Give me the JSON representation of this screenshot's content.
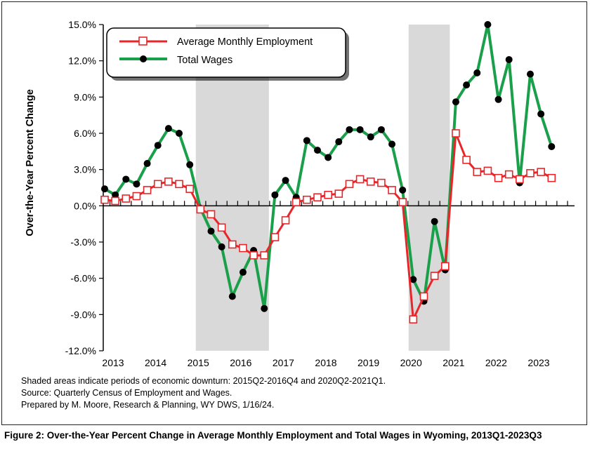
{
  "chart_data": {
    "type": "line",
    "ylabel": "Over-the-Year Percent Change",
    "ylim": [
      -12,
      15
    ],
    "y_ticks": [
      "15.0%",
      "12.0%",
      "9.0%",
      "6.0%",
      "3.0%",
      "0.0%",
      "-3.0%",
      "-6.0%",
      "-9.0%",
      "-12.0%"
    ],
    "y_tick_values": [
      15,
      12,
      9,
      6,
      3,
      0,
      -3,
      -6,
      -9,
      -12
    ],
    "x_tick_labels": [
      "2013",
      "2014",
      "2015",
      "2016",
      "2017",
      "2018",
      "2019",
      "2020",
      "2021",
      "2022",
      "2023"
    ],
    "x_start": "2013Q1",
    "shaded_periods": [
      [
        "2015Q2",
        "2016Q4"
      ],
      [
        "2020Q2",
        "2021Q1"
      ]
    ],
    "legend_position": "top-left",
    "grid": false,
    "series": [
      {
        "name": "Average Monthly Employment",
        "color": "#e8262a",
        "marker": "open-square",
        "values": [
          0.5,
          0.4,
          0.6,
          0.8,
          1.3,
          1.8,
          2.0,
          1.8,
          1.4,
          -0.3,
          -0.7,
          -1.8,
          -3.2,
          -3.5,
          -4.1,
          -4.1,
          -2.6,
          -1.2,
          0.3,
          0.5,
          0.7,
          0.9,
          1.0,
          1.8,
          2.2,
          2.0,
          1.9,
          1.3,
          0.3,
          -9.4,
          -7.5,
          -5.8,
          -5.0,
          6.0,
          3.8,
          2.8,
          2.9,
          2.3,
          2.6,
          2.2,
          2.7,
          2.8,
          2.3
        ]
      },
      {
        "name": "Total Wages",
        "color": "#1aa04a",
        "marker": "filled-circle",
        "values": [
          1.4,
          0.9,
          2.2,
          1.8,
          3.5,
          5.0,
          6.4,
          6.0,
          3.4,
          -0.2,
          -2.1,
          -3.4,
          -7.5,
          -5.5,
          -3.7,
          -8.5,
          0.9,
          2.1,
          0.7,
          5.4,
          4.6,
          4.0,
          5.3,
          6.3,
          6.3,
          5.7,
          6.3,
          5.1,
          1.3,
          -6.1,
          -7.9,
          -1.3,
          -5.3,
          8.6,
          10.0,
          11.0,
          15.0,
          8.8,
          12.1,
          1.9,
          10.9,
          7.6,
          4.9
        ]
      }
    ]
  },
  "notes": {
    "line1": "Shaded areas indicate periods of economic downturn: 2015Q2-2016Q4 and 2020Q2-2021Q1.",
    "line2": "Source: Quarterly Census of Employment and Wages.",
    "line3": "Prepared by M. Moore, Research & Planning, WY DWS, 1/16/24."
  },
  "caption": "Figure 2: Over-the-Year Percent Change in Average Monthly Employment and Total Wages in Wyoming, 2013Q1-2023Q3"
}
